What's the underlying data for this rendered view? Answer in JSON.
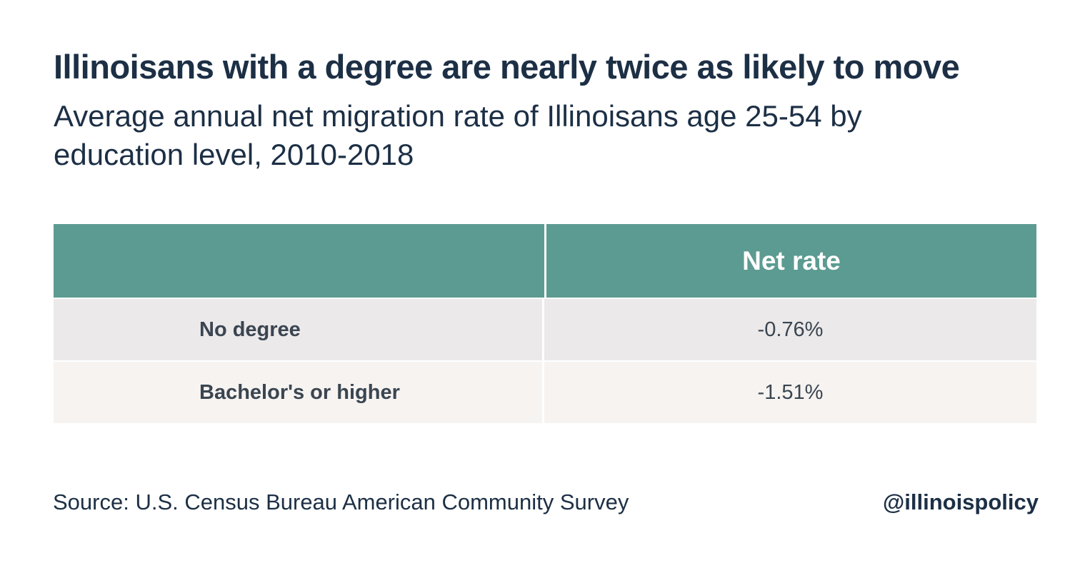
{
  "header": {
    "title": "Illinoisans with a degree are nearly twice as likely to move",
    "subtitle": "Average annual net migration rate of Illinoisans age 25-54 by education level, 2010-2018"
  },
  "chart_data": {
    "type": "table",
    "title": "Illinoisans with a degree are nearly twice as likely to move",
    "subtitle": "Average annual net migration rate of Illinoisans age 25-54 by education level, 2010-2018",
    "columns": [
      "",
      "Net rate"
    ],
    "rows": [
      {
        "label": "No degree",
        "value": "-0.76%"
      },
      {
        "label": "Bachelor's or higher",
        "value": "-1.51%"
      }
    ],
    "values": [
      -0.76,
      -1.51
    ]
  },
  "footer": {
    "source": "Source: U.S. Census Bureau American Community Survey",
    "handle": "@illinoispolicy"
  },
  "colors": {
    "header_bg": "#5c9b91",
    "row_odd_bg": "#ebe9ea",
    "row_even_bg": "#f6f3f1",
    "title_text": "#1c2f45"
  }
}
